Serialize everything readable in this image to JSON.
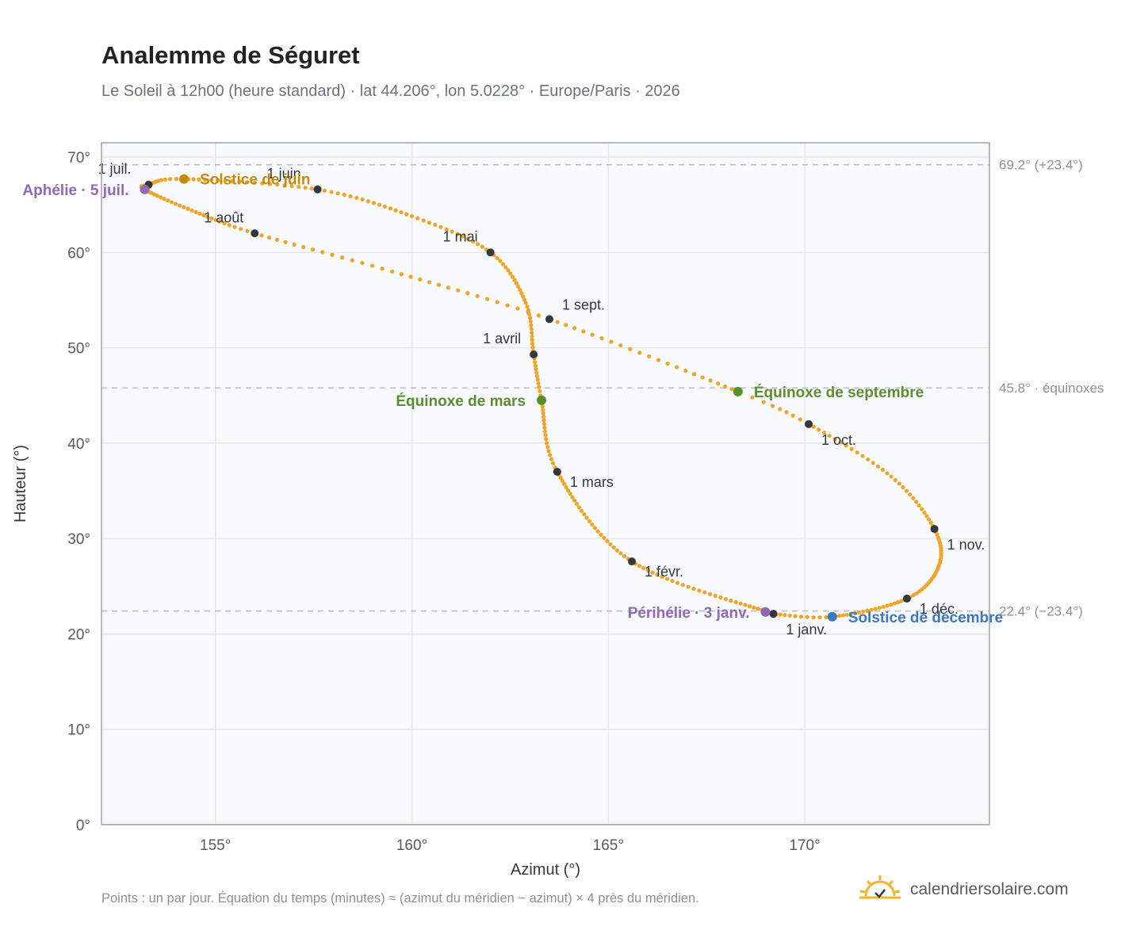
{
  "header": {
    "title": "Analemme de Séguret",
    "subtitle": "Le Soleil à 12h00 (heure standard) · lat 44.206°, lon 5.0228° · Europe/Paris · 2026"
  },
  "footer": {
    "note": "Points : un par jour. Équation du temps (minutes) ≈ (azimut du méridien − azimut) × 4 près du méridien.",
    "brand": "calendriersolaire.com"
  },
  "colors": {
    "curve": "#f0a52a",
    "month_marker": "#333840",
    "june_solstice": "#c98a0a",
    "december_solstice": "#3a78c2",
    "equinox": "#5a8f2e",
    "apsis": "#9068b5",
    "plot_bg": "#f8fafc",
    "grid": "#e3e8ef",
    "ref_line": "#b9c0c9",
    "frame": "#9aa3ae"
  },
  "chart_data": {
    "type": "scatter",
    "xlabel": "Azimut (°)",
    "ylabel": "Hauteur (°)",
    "xlim": [
      152.1,
      174.7
    ],
    "ylim": [
      0,
      71.5
    ],
    "x_ticks": [
      155,
      160,
      165,
      170
    ],
    "x_tick_labels": [
      "155°",
      "160°",
      "165°",
      "170°"
    ],
    "y_ticks": [
      0,
      10,
      20,
      30,
      40,
      50,
      60,
      70
    ],
    "y_tick_labels": [
      "0°",
      "10°",
      "20°",
      "30°",
      "40°",
      "50°",
      "60°",
      "70°"
    ],
    "grid": true,
    "series": [
      {
        "points_note": "one point per day (365), anchors below",
        "anchors": [
          {
            "day": 1,
            "x": 169.2,
            "y": 22.1
          },
          {
            "day": 32,
            "x": 165.6,
            "y": 27.6
          },
          {
            "day": 60,
            "x": 163.7,
            "y": 37.0
          },
          {
            "day": 79,
            "x": 163.3,
            "y": 44.5
          },
          {
            "day": 91,
            "x": 163.1,
            "y": 49.3
          },
          {
            "day": 105,
            "x": 162.9,
            "y": 54.7
          },
          {
            "day": 121,
            "x": 162.0,
            "y": 60.0
          },
          {
            "day": 136,
            "x": 160.0,
            "y": 63.8
          },
          {
            "day": 152,
            "x": 157.6,
            "y": 66.6
          },
          {
            "day": 172,
            "x": 154.2,
            "y": 67.7
          },
          {
            "day": 182,
            "x": 153.3,
            "y": 67.1
          },
          {
            "day": 186,
            "x": 153.2,
            "y": 66.6
          },
          {
            "day": 200,
            "x": 154.4,
            "y": 64.4
          },
          {
            "day": 213,
            "x": 156.0,
            "y": 62.0
          },
          {
            "day": 228,
            "x": 159.5,
            "y": 58.0
          },
          {
            "day": 244,
            "x": 163.5,
            "y": 53.0
          },
          {
            "day": 266,
            "x": 168.3,
            "y": 45.4
          },
          {
            "day": 274,
            "x": 170.1,
            "y": 42.0
          },
          {
            "day": 290,
            "x": 172.2,
            "y": 36.5
          },
          {
            "day": 305,
            "x": 173.3,
            "y": 31.0
          },
          {
            "day": 320,
            "x": 173.4,
            "y": 27.0
          },
          {
            "day": 335,
            "x": 172.6,
            "y": 23.7
          },
          {
            "day": 355,
            "x": 170.7,
            "y": 21.8
          },
          {
            "day": 366,
            "x": 169.2,
            "y": 22.1
          }
        ]
      }
    ],
    "month_markers": [
      {
        "label": "1 janv.",
        "x": 169.2,
        "y": 22.1,
        "pos": "below-right"
      },
      {
        "label": "1 févr.",
        "x": 165.6,
        "y": 27.6,
        "pos": "right"
      },
      {
        "label": "1 mars",
        "x": 163.7,
        "y": 37.0,
        "pos": "right"
      },
      {
        "label": "1 avril",
        "x": 163.1,
        "y": 49.3,
        "pos": "left"
      },
      {
        "label": "1 mai",
        "x": 162.0,
        "y": 60.0,
        "pos": "left"
      },
      {
        "label": "1 juin",
        "x": 157.6,
        "y": 66.6,
        "pos": "above-left"
      },
      {
        "label": "1 juil.",
        "x": 153.3,
        "y": 67.1,
        "pos": "above-left"
      },
      {
        "label": "1 août",
        "x": 156.0,
        "y": 62.0,
        "pos": "above-left"
      },
      {
        "label": "1 sept.",
        "x": 163.5,
        "y": 53.0,
        "pos": "above-right"
      },
      {
        "label": "1 oct.",
        "x": 170.1,
        "y": 42.0,
        "pos": "below-right"
      },
      {
        "label": "1 nov.",
        "x": 173.3,
        "y": 31.0,
        "pos": "below-right"
      },
      {
        "label": "1 déc.",
        "x": 172.6,
        "y": 23.7,
        "pos": "right"
      }
    ],
    "events": [
      {
        "label": "Solstice de juin",
        "x": 154.2,
        "y": 67.7,
        "color_key": "june_solstice",
        "side": "right"
      },
      {
        "label": "Aphélie · 5 juil.",
        "x": 153.2,
        "y": 66.6,
        "color_key": "apsis",
        "side": "left"
      },
      {
        "label": "Équinoxe de mars",
        "x": 163.3,
        "y": 44.5,
        "color_key": "equinox",
        "side": "left"
      },
      {
        "label": "Équinoxe de septembre",
        "x": 168.3,
        "y": 45.4,
        "color_key": "equinox",
        "side": "right"
      },
      {
        "label": "Périhélie · 3 janv.",
        "x": 169.0,
        "y": 22.3,
        "color_key": "apsis",
        "side": "left"
      },
      {
        "label": "Solstice de décembre",
        "x": 170.7,
        "y": 21.8,
        "color_key": "december_solstice",
        "side": "right"
      }
    ],
    "reference_lines": [
      {
        "y": 69.2,
        "label": "69.2° (+23.4°)"
      },
      {
        "y": 45.8,
        "label": "45.8° · équinoxes"
      },
      {
        "y": 22.4,
        "label": "22.4° (−23.4°)"
      }
    ]
  }
}
